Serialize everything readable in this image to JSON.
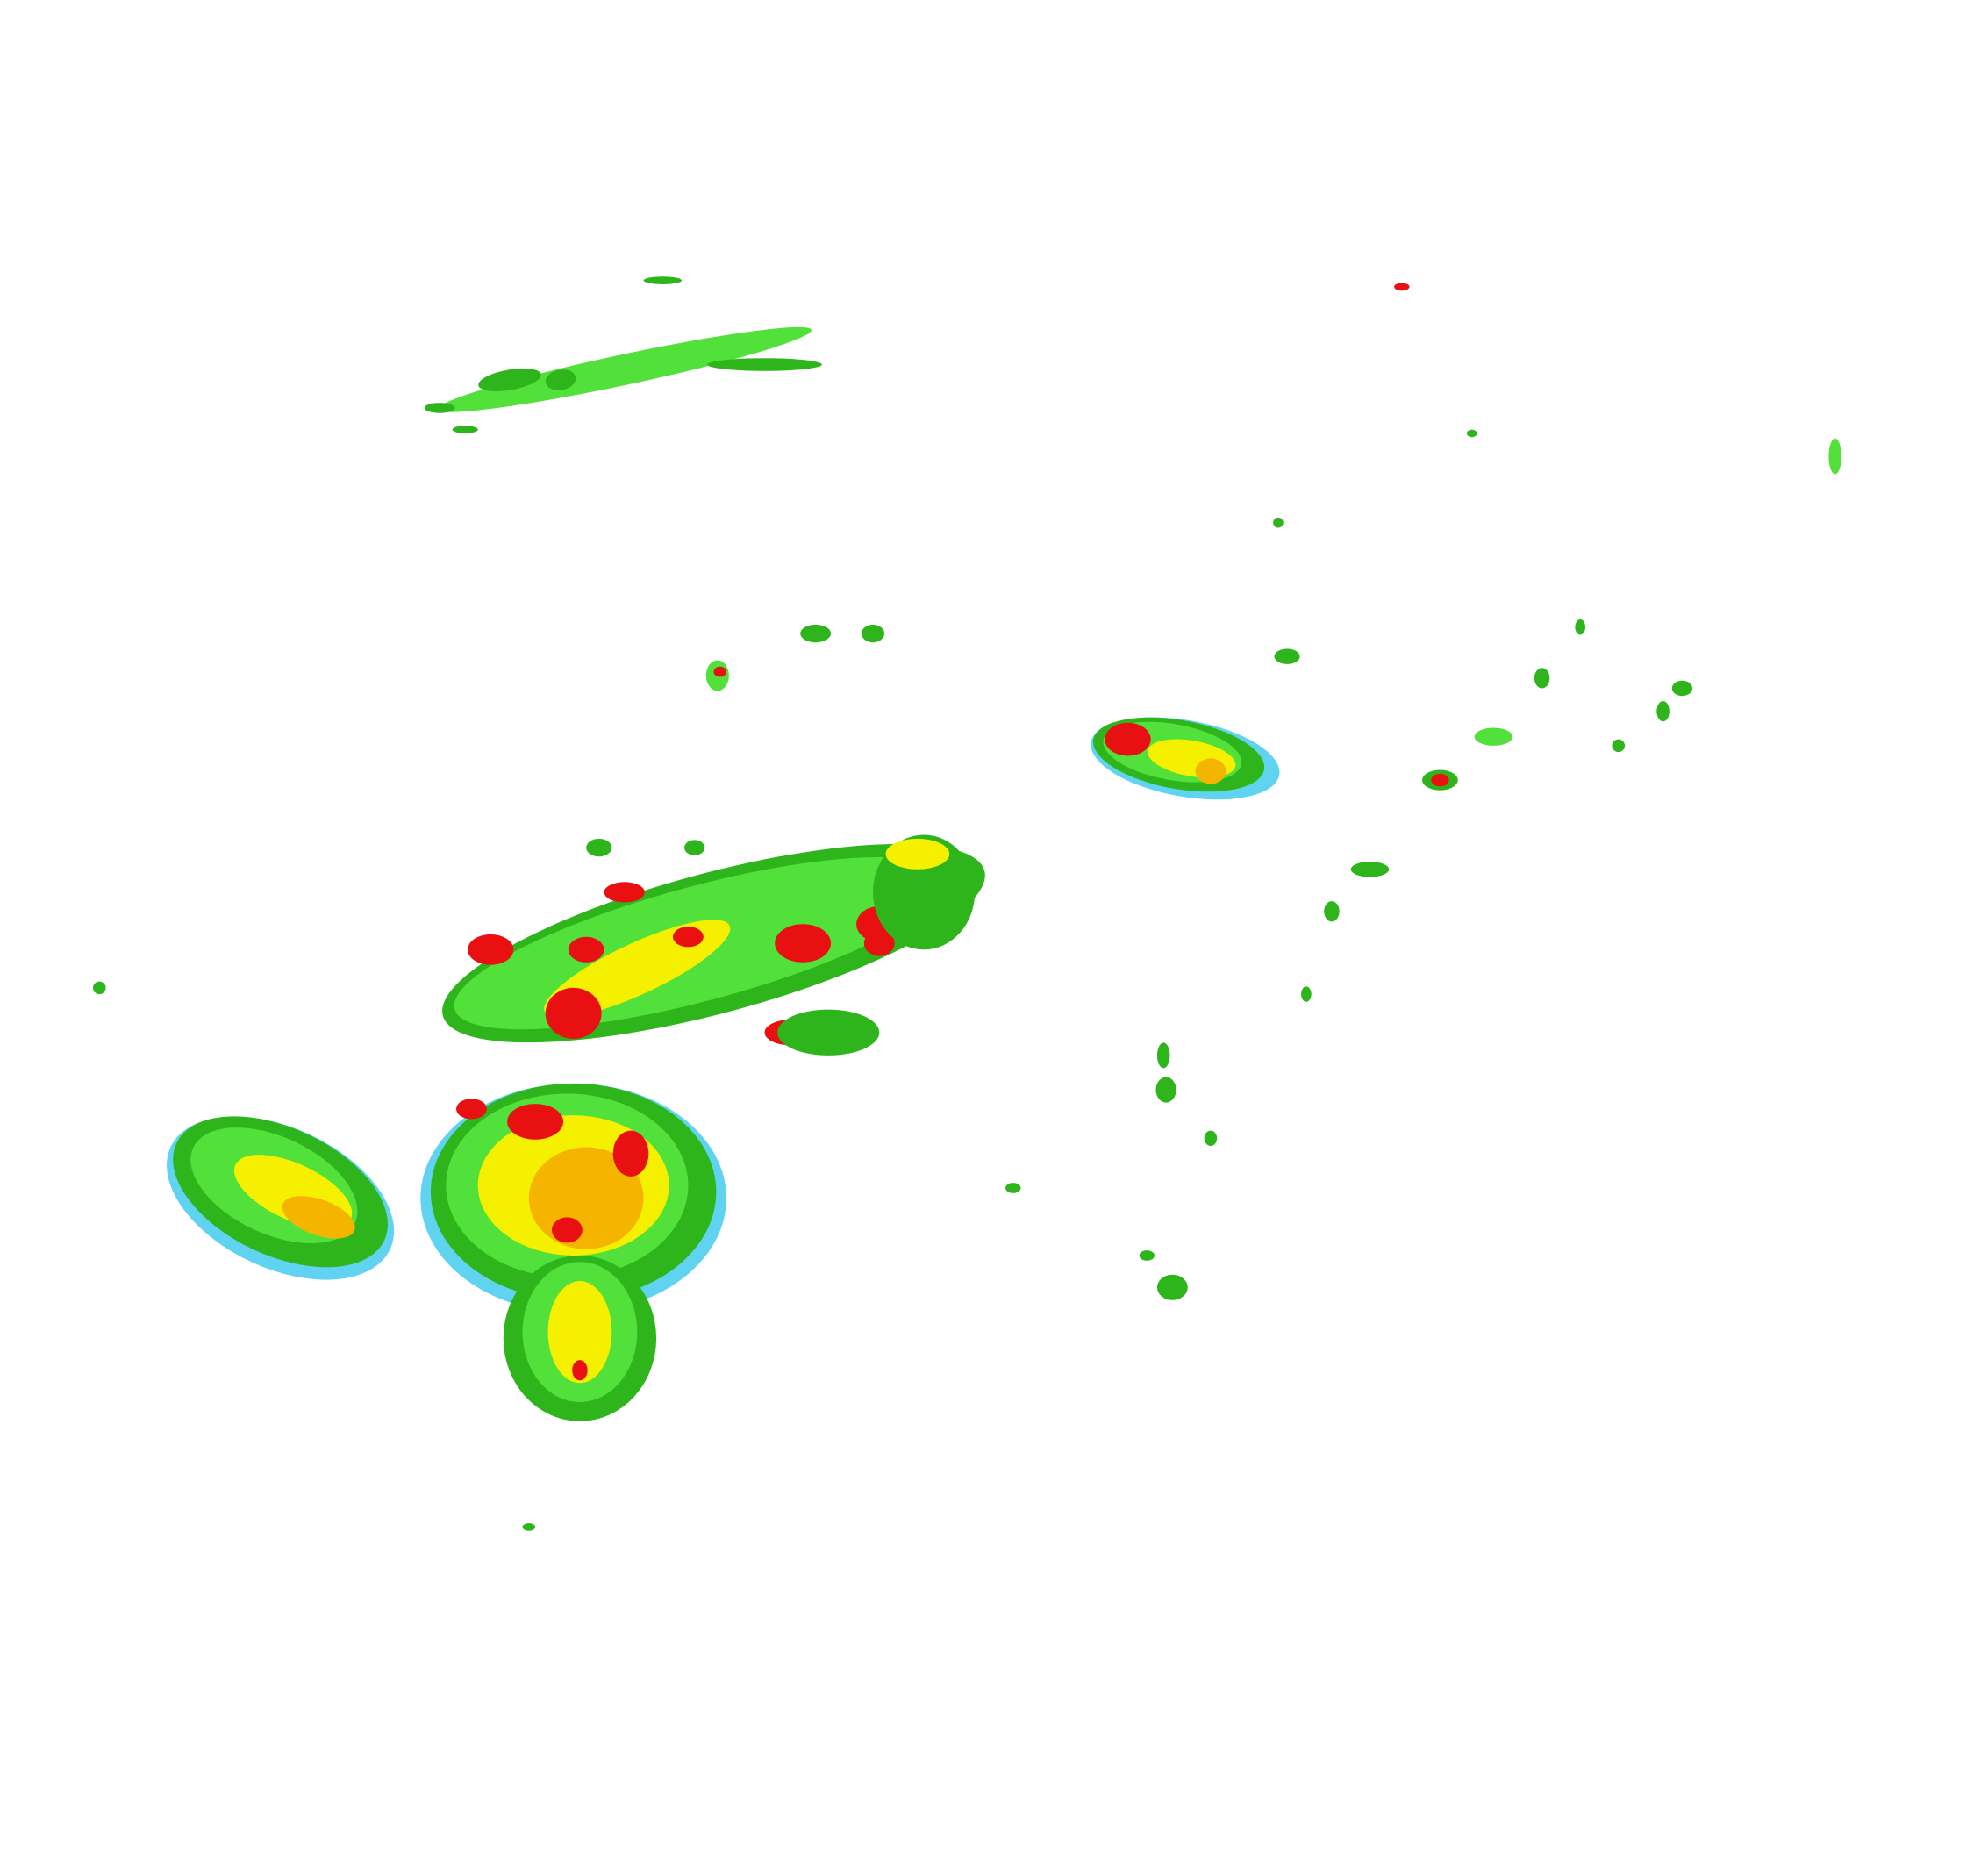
{
  "map": {
    "type": "radar-reflectivity",
    "background": "#ffffff",
    "palette": {
      "light_blue": "#5fd3f0",
      "blue": "#3c9cf0",
      "light_green": "#52e03a",
      "green": "#2fb51c",
      "dark_green": "#1e8f12",
      "yellow": "#f5f000",
      "orange": "#f5b400",
      "red": "#e81010",
      "dark_red": "#c00000"
    }
  }
}
